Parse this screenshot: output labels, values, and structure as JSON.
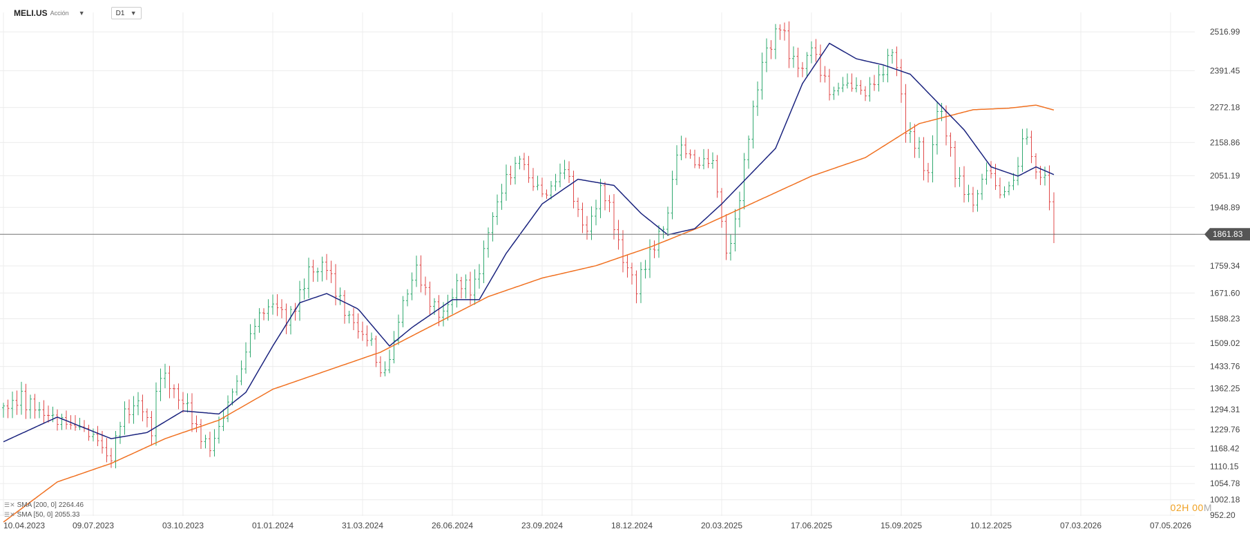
{
  "header": {
    "symbol": "MELI.US",
    "type": "Acción",
    "timeframe": "D1"
  },
  "indicators": [
    {
      "label": "SMA [200,  0]",
      "value": "2264.46",
      "color": "#f07020"
    },
    {
      "label": "SMA [50,  0]",
      "value": "2055.33",
      "color": "#1a237e"
    }
  ],
  "current_price_label": "1861.83",
  "countdown": {
    "hours": "02",
    "h": "H",
    "minutes": "00",
    "m": "M"
  },
  "colors": {
    "up": "#2ea86e",
    "down": "#e04848",
    "sma200": "#f07020",
    "sma50": "#1a237e",
    "price_line": "#777777"
  },
  "chart_data": {
    "type": "candlestick",
    "title": "MELI.US",
    "ylim": [
      950,
      2580
    ],
    "y_ticks": [
      2516.99,
      2391.45,
      2272.18,
      2158.86,
      2051.19,
      1948.89,
      1861.83,
      1759.34,
      1671.6,
      1588.23,
      1509.02,
      1433.76,
      1362.25,
      1294.31,
      1229.76,
      1168.42,
      1110.15,
      1054.78,
      1002.18,
      952.2
    ],
    "x_ticks": [
      "10.04.2023",
      "09.07.2023",
      "03.10.2023",
      "01.01.2024",
      "31.03.2024",
      "26.06.2024",
      "23.09.2024",
      "18.12.2024",
      "20.03.2025",
      "17.06.2025",
      "15.09.2025",
      "10.12.2025",
      "07.03.2026",
      "07.05.2026"
    ],
    "x_tick_index": [
      0,
      100,
      200,
      300,
      400,
      500,
      600,
      700,
      800,
      900,
      1000,
      1100,
      1200,
      1300
    ],
    "last_index": 1170,
    "close_anchors": [
      [
        0,
        1300
      ],
      [
        20,
        1330
      ],
      [
        45,
        1280
      ],
      [
        70,
        1250
      ],
      [
        90,
        1230
      ],
      [
        110,
        1180
      ],
      [
        118,
        1110
      ],
      [
        130,
        1260
      ],
      [
        150,
        1320
      ],
      [
        165,
        1230
      ],
      [
        175,
        1420
      ],
      [
        190,
        1350
      ],
      [
        205,
        1300
      ],
      [
        220,
        1200
      ],
      [
        232,
        1170
      ],
      [
        248,
        1300
      ],
      [
        262,
        1400
      ],
      [
        280,
        1580
      ],
      [
        300,
        1640
      ],
      [
        318,
        1580
      ],
      [
        340,
        1740
      ],
      [
        360,
        1760
      ],
      [
        375,
        1640
      ],
      [
        395,
        1550
      ],
      [
        410,
        1510
      ],
      [
        422,
        1390
      ],
      [
        432,
        1480
      ],
      [
        445,
        1640
      ],
      [
        460,
        1750
      ],
      [
        475,
        1640
      ],
      [
        490,
        1600
      ],
      [
        505,
        1700
      ],
      [
        525,
        1690
      ],
      [
        540,
        1870
      ],
      [
        555,
        2010
      ],
      [
        575,
        2110
      ],
      [
        590,
        2020
      ],
      [
        605,
        1990
      ],
      [
        625,
        2080
      ],
      [
        648,
        1860
      ],
      [
        668,
        2020
      ],
      [
        690,
        1780
      ],
      [
        705,
        1690
      ],
      [
        720,
        1800
      ],
      [
        738,
        1900
      ],
      [
        752,
        2160
      ],
      [
        770,
        2090
      ],
      [
        790,
        2100
      ],
      [
        805,
        1800
      ],
      [
        815,
        1890
      ],
      [
        828,
        2150
      ],
      [
        845,
        2420
      ],
      [
        865,
        2540
      ],
      [
        878,
        2430
      ],
      [
        888,
        2390
      ],
      [
        900,
        2470
      ],
      [
        920,
        2320
      ],
      [
        940,
        2350
      ],
      [
        960,
        2320
      ],
      [
        978,
        2380
      ],
      [
        992,
        2470
      ],
      [
        1005,
        2200
      ],
      [
        1018,
        2150
      ],
      [
        1030,
        2050
      ],
      [
        1042,
        2300
      ],
      [
        1058,
        2080
      ],
      [
        1070,
        2000
      ],
      [
        1082,
        1960
      ],
      [
        1095,
        2080
      ],
      [
        1110,
        1990
      ],
      [
        1125,
        2030
      ],
      [
        1138,
        2200
      ],
      [
        1150,
        2060
      ],
      [
        1160,
        2040
      ],
      [
        1166,
        1980
      ],
      [
        1170,
        1862
      ]
    ],
    "sma200_anchors": [
      [
        0,
        930
      ],
      [
        60,
        1060
      ],
      [
        120,
        1120
      ],
      [
        180,
        1200
      ],
      [
        240,
        1260
      ],
      [
        300,
        1360
      ],
      [
        360,
        1420
      ],
      [
        420,
        1480
      ],
      [
        480,
        1570
      ],
      [
        540,
        1660
      ],
      [
        600,
        1720
      ],
      [
        660,
        1760
      ],
      [
        720,
        1820
      ],
      [
        780,
        1890
      ],
      [
        840,
        1970
      ],
      [
        900,
        2050
      ],
      [
        960,
        2110
      ],
      [
        1020,
        2220
      ],
      [
        1080,
        2265
      ],
      [
        1120,
        2270
      ],
      [
        1150,
        2280
      ],
      [
        1170,
        2264
      ]
    ],
    "sma50_anchors": [
      [
        0,
        1190
      ],
      [
        60,
        1270
      ],
      [
        120,
        1200
      ],
      [
        160,
        1220
      ],
      [
        200,
        1290
      ],
      [
        240,
        1280
      ],
      [
        270,
        1350
      ],
      [
        300,
        1500
      ],
      [
        330,
        1640
      ],
      [
        360,
        1670
      ],
      [
        395,
        1620
      ],
      [
        430,
        1500
      ],
      [
        455,
        1560
      ],
      [
        500,
        1650
      ],
      [
        530,
        1650
      ],
      [
        560,
        1800
      ],
      [
        600,
        1960
      ],
      [
        640,
        2040
      ],
      [
        680,
        2020
      ],
      [
        710,
        1930
      ],
      [
        740,
        1860
      ],
      [
        770,
        1880
      ],
      [
        800,
        1960
      ],
      [
        830,
        2050
      ],
      [
        860,
        2140
      ],
      [
        890,
        2350
      ],
      [
        920,
        2480
      ],
      [
        950,
        2430
      ],
      [
        980,
        2410
      ],
      [
        1010,
        2380
      ],
      [
        1040,
        2290
      ],
      [
        1070,
        2200
      ],
      [
        1100,
        2080
      ],
      [
        1130,
        2050
      ],
      [
        1150,
        2080
      ],
      [
        1170,
        2055
      ]
    ],
    "series": [
      {
        "name": "SMA 200",
        "period": 200,
        "last": 2264.46
      },
      {
        "name": "SMA 50",
        "period": 50,
        "last": 2055.33
      }
    ],
    "current_price": 1861.83,
    "step": 5
  }
}
